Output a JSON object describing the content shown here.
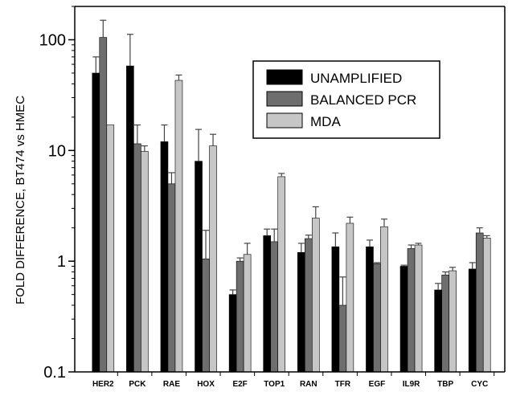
{
  "chart_data": {
    "type": "bar",
    "scale": "log",
    "ylabel": "FOLD DIFFERENCE, BT474 vs HMEC",
    "xlabel": "",
    "ylim": [
      0.1,
      200
    ],
    "yticks": [
      0.1,
      1,
      10,
      100
    ],
    "ytick_labels": [
      "0.1",
      "1",
      "10",
      "100"
    ],
    "grid": false,
    "legend_position": "top-right",
    "categories": [
      "HER2",
      "PCK",
      "RAE",
      "HOX",
      "E2F",
      "TOP1",
      "RAN",
      "TFR",
      "EGF",
      "IL9R",
      "TBP",
      "CYC"
    ],
    "series": [
      {
        "name": "UNAMPLIFIED",
        "color": "#000000",
        "values": [
          50,
          58,
          12,
          8,
          0.5,
          1.7,
          1.2,
          1.35,
          1.35,
          0.9,
          0.55,
          0.85
        ],
        "error_high": [
          70,
          112,
          17,
          15.5,
          0.55,
          1.95,
          1.45,
          1.8,
          1.55,
          0.92,
          0.63,
          0.97
        ]
      },
      {
        "name": "BALANCED PCR",
        "color": "#6e6e6e",
        "values": [
          105,
          11.5,
          5,
          1.05,
          1.0,
          1.5,
          1.6,
          0.4,
          0.95,
          1.3,
          0.75,
          1.8
        ],
        "error_high": [
          150,
          17,
          6.3,
          1.9,
          1.07,
          1.95,
          1.72,
          0.72,
          0.97,
          1.4,
          0.8,
          2.0
        ]
      },
      {
        "name": "MDA",
        "color": "#c6c6c6",
        "values": [
          17,
          9.8,
          43,
          11,
          1.15,
          5.8,
          2.45,
          2.2,
          2.05,
          1.4,
          0.82,
          1.62
        ],
        "error_high": [
          17,
          11,
          48,
          14,
          1.45,
          6.2,
          3.1,
          2.5,
          2.4,
          1.45,
          0.88,
          1.7
        ]
      }
    ]
  }
}
